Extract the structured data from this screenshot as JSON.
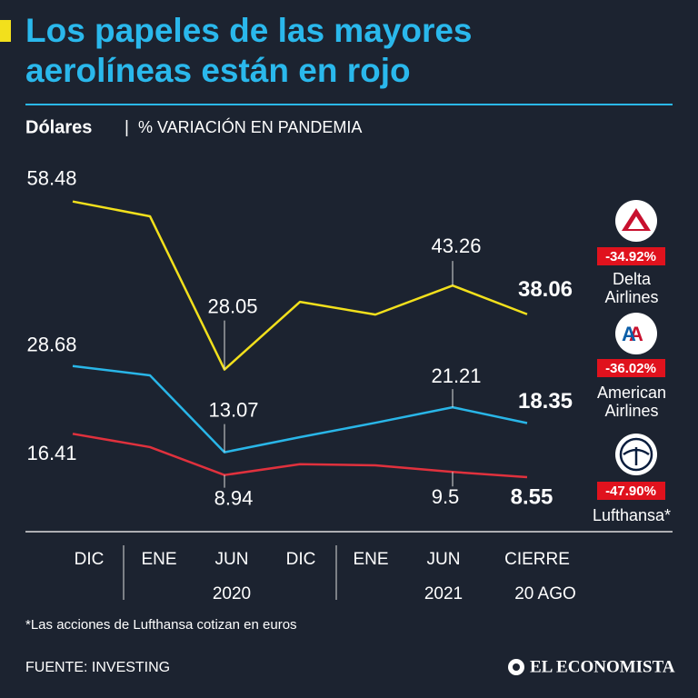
{
  "chart_data": {
    "type": "line",
    "title": "Los papeles de las mayores aerolíneas están en rojo",
    "unit": "Dólares",
    "subtitle": "% VARIACIÓN EN PANDEMIA",
    "categories": [
      "DIC",
      "ENE",
      "JUN",
      "DIC",
      "ENE",
      "JUN",
      "CIERRE"
    ],
    "group_labels": [
      "2020",
      "2021",
      "20 AGO"
    ],
    "ylim": [
      0,
      66
    ],
    "series": [
      {
        "name": "Delta Airlines",
        "color": "#f2e01c",
        "change_label": "-34.92%",
        "values": [
          58.48,
          55.8,
          28.05,
          40.3,
          38.0,
          43.26,
          38.06
        ],
        "value_labels": [
          "58.48",
          null,
          "28.05",
          null,
          null,
          "43.26",
          "38.06"
        ]
      },
      {
        "name": "American Airlines",
        "color": "#29b6e8",
        "change_label": "-36.02%",
        "values": [
          28.68,
          27.0,
          13.07,
          15.8,
          18.4,
          21.21,
          18.35
        ],
        "value_labels": [
          "28.68",
          null,
          "13.07",
          null,
          null,
          "21.21",
          "18.35"
        ]
      },
      {
        "name": "Lufthansa*",
        "color": "#e0313d",
        "change_label": "-47.90%",
        "values": [
          16.41,
          14.0,
          8.94,
          10.9,
          10.7,
          9.5,
          8.55
        ],
        "value_labels": [
          "16.41",
          null,
          "8.94",
          null,
          null,
          "9.5",
          "8.55"
        ]
      }
    ],
    "footnote": "*Las acciones de Lufthansa cotizan en euros",
    "source": "FUENTE: INVESTING",
    "brand": "EL ECONOMISTA"
  }
}
